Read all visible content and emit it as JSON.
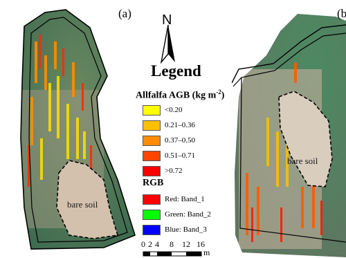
{
  "panels": {
    "a": {
      "label": "(a)",
      "bare_soil_label": "bare soil"
    },
    "b": {
      "label": "(b",
      "bare_soil_label": "bare soil"
    }
  },
  "north_arrow": {
    "letter": "N",
    "icon": "north-arrow-icon"
  },
  "legend": {
    "title": "Legend",
    "agb": {
      "heading_text": "Allfalfa AGB (kg m",
      "heading_sup": "-2",
      "heading_close": ")",
      "classes": [
        {
          "label": "<0.20",
          "color": "#ffff00"
        },
        {
          "label": "0.21–0.36",
          "color": "#ffc000"
        },
        {
          "label": "0.37–0.50",
          "color": "#ff8c00"
        },
        {
          "label": "0.51–0.71",
          "color": "#ff4500"
        },
        {
          "label": ">0.72",
          "color": "#ff0000"
        }
      ]
    },
    "rgb": {
      "heading": "RGB",
      "bands": [
        {
          "label": "Red: Band_1",
          "color": "#ff0000"
        },
        {
          "label": "Green: Band_2",
          "color": "#00ff00"
        },
        {
          "label": "Blue: Band_3",
          "color": "#0000ff"
        }
      ]
    }
  },
  "scale_bar": {
    "ticks": [
      "0",
      "2",
      "4",
      "8",
      "12",
      "16"
    ],
    "unit": "m"
  },
  "colors": {
    "vegetation": "#4f7a5a",
    "bare_soil": "#c9b9a6",
    "boundary": "#000000"
  }
}
